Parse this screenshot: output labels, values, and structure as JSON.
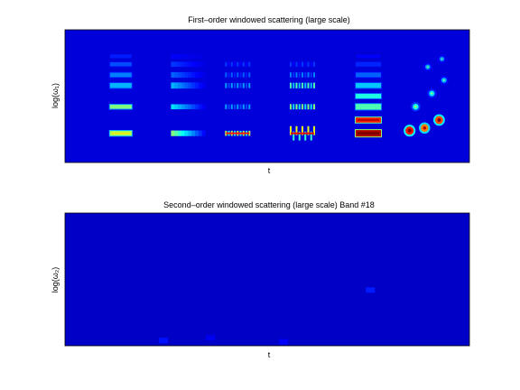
{
  "chart_data": [
    {
      "type": "heatmap",
      "title": "First–order windowed scattering (large scale)",
      "xlabel": "t",
      "ylabel": "log(ω₁)",
      "colormap": "jet",
      "background_level": 0.09,
      "groups": [
        {
          "kind": "bars",
          "center": 0.138,
          "rows": [
            [
              0.22,
              0.55,
              0.55
            ],
            [
              0.42,
              0.5,
              0.4
            ],
            [
              0.58,
              0.3,
              0.6
            ],
            [
              0.66,
              0.25,
              0.5
            ],
            [
              0.74,
              0.2,
              0.42
            ],
            [
              0.8,
              0.15,
              0.38
            ]
          ]
        },
        {
          "kind": "fade",
          "center": 0.271,
          "rows": [
            [
              0.22,
              0.5,
              0.7
            ],
            [
              0.42,
              0.35,
              0.6
            ],
            [
              0.58,
              0.3,
              0.8
            ],
            [
              0.66,
              0.22,
              0.7
            ],
            [
              0.74,
              0.18,
              0.6
            ],
            [
              0.8,
              0.12,
              0.5
            ]
          ]
        },
        {
          "kind": "stripes",
          "center": 0.427,
          "rows": [
            [
              0.22,
              0.55,
              0.6
            ],
            [
              0.42,
              0.28,
              0.55
            ],
            [
              0.58,
              0.28,
              0.6
            ],
            [
              0.66,
              0.22,
              0.55
            ],
            [
              0.74,
              0.18,
              0.5
            ]
          ]
        },
        {
          "kind": "zigzag",
          "center": 0.587,
          "rows": [
            [
              0.22,
              0.6,
              0.65
            ],
            [
              0.42,
              0.5,
              0.65
            ],
            [
              0.58,
              0.45,
              0.7
            ],
            [
              0.66,
              0.25,
              0.6
            ],
            [
              0.74,
              0.18,
              0.55
            ]
          ]
        },
        {
          "kind": "blocks",
          "center": 0.75,
          "rows": [
            [
              0.22,
              0.95,
              0.85
            ],
            [
              0.32,
              0.85,
              0.6
            ],
            [
              0.42,
              0.45,
              0.7
            ],
            [
              0.5,
              0.4,
              0.5
            ],
            [
              0.58,
              0.32,
              0.6
            ],
            [
              0.66,
              0.22,
              0.55
            ],
            [
              0.74,
              0.16,
              0.5
            ],
            [
              0.8,
              0.12,
              0.4
            ]
          ]
        },
        {
          "kind": "spots",
          "center": 0.907,
          "spots": [
            [
              -0.055,
              0.24,
              0.85
            ],
            [
              -0.018,
              0.26,
              0.75
            ],
            [
              0.018,
              0.32,
              0.8
            ],
            [
              -0.04,
              0.42,
              0.4
            ],
            [
              0.0,
              0.52,
              0.35
            ],
            [
              0.03,
              0.62,
              0.3
            ],
            [
              -0.01,
              0.72,
              0.28
            ],
            [
              0.025,
              0.78,
              0.25
            ]
          ]
        }
      ]
    },
    {
      "type": "heatmap",
      "title": "Second–order windowed scattering (large scale) Band #18",
      "xlabel": "t",
      "ylabel": "log(ω₂)",
      "colormap": "jet",
      "background_level": 0.07,
      "faint_features": [
        [
          0.243,
          0.04,
          0.14
        ],
        [
          0.755,
          0.42,
          0.15
        ],
        [
          0.54,
          0.03,
          0.12
        ],
        [
          0.36,
          0.06,
          0.11
        ]
      ]
    }
  ]
}
